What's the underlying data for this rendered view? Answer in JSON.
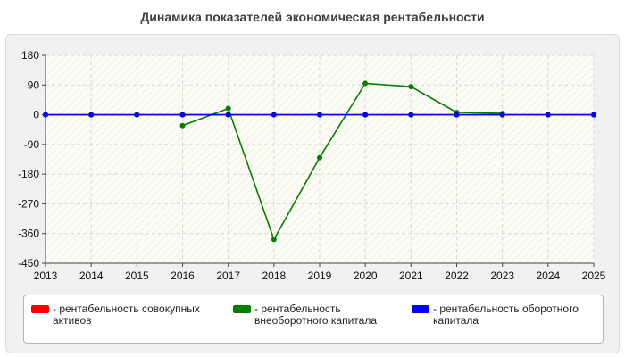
{
  "chart_data": {
    "type": "line",
    "title": "Динамика показателей экономическая рентабельности",
    "x": [
      "2013",
      "2014",
      "2015",
      "2016",
      "2017",
      "2018",
      "2019",
      "2020",
      "2021",
      "2022",
      "2023",
      "2024",
      "2025"
    ],
    "ylim": [
      -450,
      180
    ],
    "yticks": [
      180,
      90,
      0,
      -90,
      -180,
      -270,
      -360,
      -450
    ],
    "grid": true,
    "legend_position": "bottom",
    "series": [
      {
        "name": "- рентабельность совокупных активов",
        "color": "#ff0000",
        "values": [
          0,
          0,
          0,
          0,
          0,
          0,
          0,
          0,
          0,
          0,
          0,
          0,
          0
        ]
      },
      {
        "name": "- рентабельность внеоборотного капитала",
        "color": "#008000",
        "values": [
          null,
          null,
          null,
          -33,
          19,
          -378,
          -130,
          95,
          85,
          7,
          4,
          null,
          null
        ]
      },
      {
        "name": "- рентабельность оборотного капитала",
        "color": "#0000ff",
        "values": [
          0,
          0,
          0,
          0,
          0,
          0,
          0,
          0,
          0,
          0,
          0,
          0,
          0
        ]
      }
    ]
  }
}
